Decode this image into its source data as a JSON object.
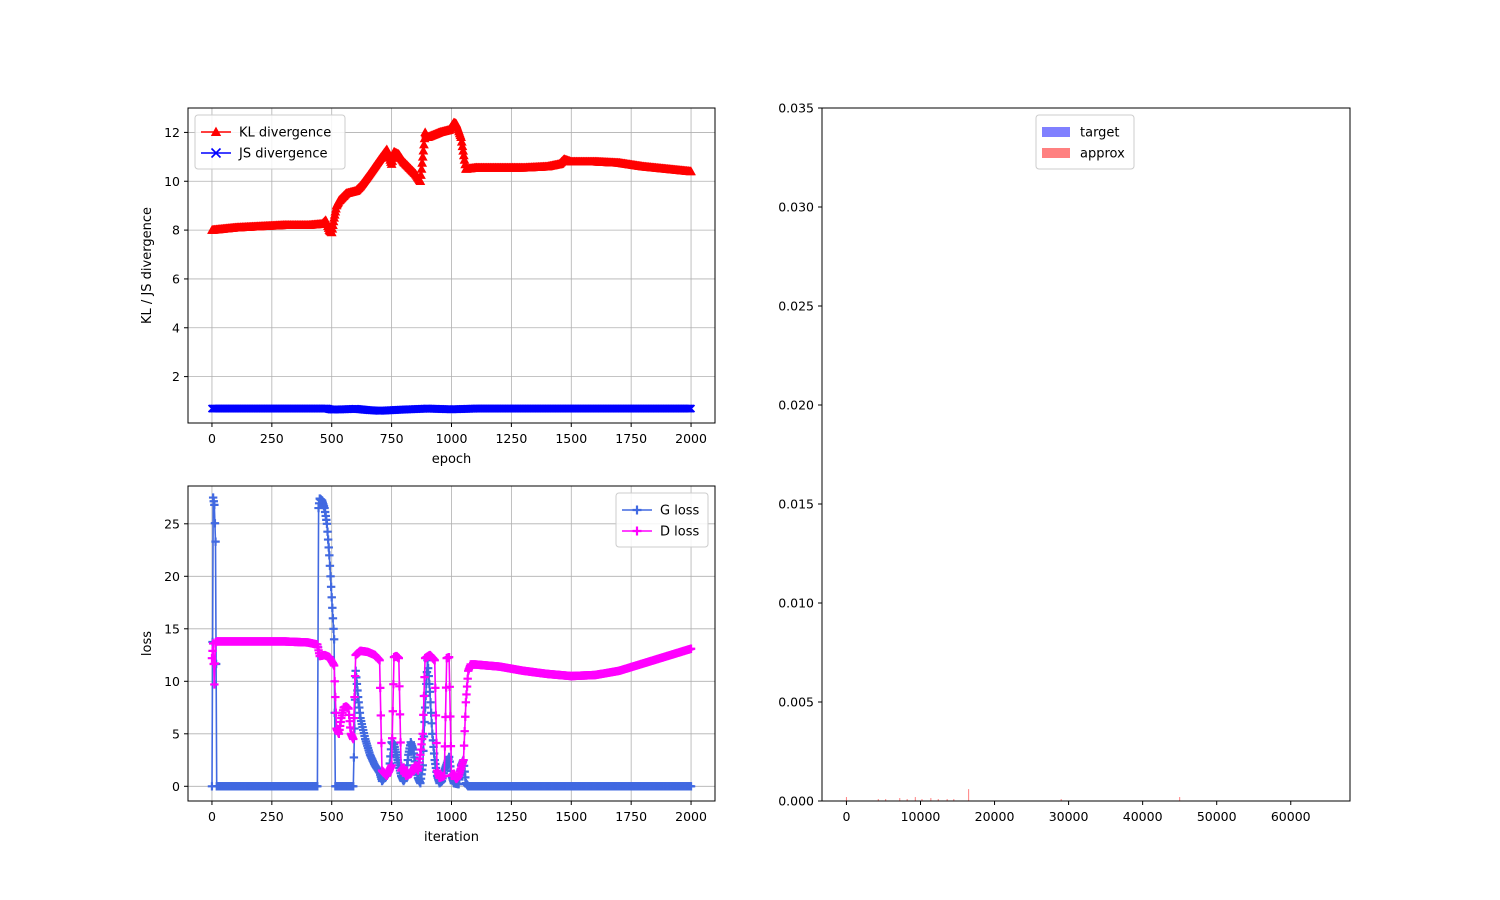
{
  "chart_data": [
    {
      "id": "divergence",
      "type": "line",
      "xlabel": "epoch",
      "ylabel": "KL / JS divergence",
      "xlim": [
        -100,
        2100
      ],
      "ylim": [
        0.1,
        13.0
      ],
      "xticks": [
        0,
        250,
        500,
        750,
        1000,
        1250,
        1500,
        1750,
        2000
      ],
      "yticks": [
        2,
        4,
        6,
        8,
        10,
        12
      ],
      "grid": true,
      "legend": "upper left",
      "series": [
        {
          "name": "KL divergence",
          "color": "#ff0000",
          "marker": "triangle",
          "x": [
            0,
            50,
            100,
            200,
            300,
            400,
            460,
            475,
            490,
            500,
            510,
            520,
            530,
            540,
            560,
            600,
            620,
            650,
            700,
            730,
            750,
            760,
            780,
            800,
            850,
            870,
            880,
            890,
            900,
            950,
            990,
            1010,
            1020,
            1040,
            1060,
            1100,
            1200,
            1300,
            1400,
            1450,
            1470,
            1500,
            1600,
            1700,
            1800,
            1900,
            2000
          ],
          "y": [
            8.0,
            8.05,
            8.1,
            8.15,
            8.2,
            8.2,
            8.25,
            8.4,
            8.0,
            7.9,
            8.5,
            9.0,
            9.2,
            9.3,
            9.5,
            9.6,
            9.8,
            10.2,
            10.9,
            11.3,
            10.7,
            11.2,
            11.1,
            10.8,
            10.3,
            10.0,
            11.0,
            12.0,
            11.8,
            12.0,
            12.1,
            12.4,
            12.35,
            11.8,
            10.5,
            10.55,
            10.55,
            10.55,
            10.6,
            10.7,
            10.9,
            10.8,
            10.8,
            10.75,
            10.6,
            10.5,
            10.4
          ]
        },
        {
          "name": "JS divergence",
          "color": "#0000ff",
          "marker": "x",
          "x": [
            0,
            100,
            200,
            300,
            400,
            480,
            500,
            550,
            600,
            650,
            700,
            800,
            900,
            1000,
            1100,
            1200,
            1400,
            1600,
            1800,
            2000
          ],
          "y": [
            0.69,
            0.69,
            0.69,
            0.69,
            0.69,
            0.69,
            0.65,
            0.66,
            0.68,
            0.63,
            0.6,
            0.65,
            0.69,
            0.66,
            0.69,
            0.69,
            0.69,
            0.69,
            0.69,
            0.69
          ]
        }
      ]
    },
    {
      "id": "loss",
      "type": "line",
      "xlabel": "iteration",
      "ylabel": "loss",
      "xlim": [
        -100,
        2100
      ],
      "ylim": [
        -1.4,
        28.6
      ],
      "xticks": [
        0,
        250,
        500,
        750,
        1000,
        1250,
        1500,
        1750,
        2000
      ],
      "yticks": [
        0,
        5,
        10,
        15,
        20,
        25
      ],
      "grid": true,
      "legend": "upper right",
      "series": [
        {
          "name": "G loss",
          "color": "#4169e1",
          "marker": "plus",
          "x": [
            0,
            5,
            10,
            15,
            20,
            100,
            200,
            300,
            400,
            440,
            445,
            450,
            460,
            470,
            480,
            490,
            500,
            510,
            515,
            520,
            560,
            590,
            600,
            610,
            620,
            640,
            660,
            680,
            700,
            710,
            740,
            750,
            760,
            770,
            780,
            790,
            800,
            810,
            820,
            830,
            840,
            850,
            860,
            870,
            880,
            890,
            900,
            910,
            920,
            930,
            940,
            950,
            960,
            970,
            990,
            1000,
            1010,
            1030,
            1040,
            1050,
            1060,
            1070,
            1200,
            1500,
            1800,
            2000
          ],
          "y": [
            0,
            27.5,
            26.8,
            23.3,
            0,
            0,
            0,
            0,
            0,
            0,
            26.5,
            27.4,
            27.2,
            26.5,
            25.0,
            22.0,
            18.0,
            14.0,
            0,
            0,
            0,
            0,
            11.0,
            8.5,
            6.5,
            4.5,
            3.0,
            2.0,
            1.3,
            0.5,
            1.5,
            4.2,
            4.0,
            3.0,
            2.0,
            1.0,
            0.5,
            1.0,
            3.0,
            4.2,
            3.5,
            2.0,
            0.8,
            0.3,
            2.0,
            7.5,
            12.0,
            9.0,
            5.0,
            2.5,
            1.0,
            0.3,
            0.5,
            1.5,
            2.8,
            1.0,
            0.3,
            0.2,
            2.0,
            2.5,
            0.3,
            0,
            0,
            0,
            0,
            0
          ]
        },
        {
          "name": "D loss",
          "color": "#ff00ff",
          "marker": "plus",
          "x": [
            0,
            5,
            10,
            15,
            20,
            50,
            100,
            200,
            300,
            400,
            440,
            450,
            470,
            490,
            510,
            520,
            530,
            540,
            550,
            560,
            570,
            580,
            590,
            600,
            620,
            650,
            680,
            700,
            710,
            730,
            740,
            750,
            760,
            770,
            780,
            790,
            800,
            810,
            830,
            850,
            860,
            870,
            880,
            890,
            910,
            930,
            940,
            950,
            970,
            980,
            990,
            1000,
            1010,
            1020,
            1030,
            1050,
            1060,
            1070,
            1080,
            1100,
            1200,
            1300,
            1400,
            1500,
            1600,
            1700,
            1800,
            1900,
            2000
          ],
          "y": [
            12.2,
            13.6,
            9.7,
            13.7,
            13.8,
            13.8,
            13.8,
            13.8,
            13.8,
            13.7,
            13.5,
            12.4,
            12.5,
            12.3,
            11.5,
            5.5,
            5.0,
            6.5,
            7.5,
            7.6,
            7.4,
            5.0,
            4.5,
            12.5,
            12.9,
            12.8,
            12.5,
            12.0,
            1.5,
            1.0,
            1.5,
            2.0,
            12.3,
            12.4,
            12.2,
            1.5,
            1.8,
            1.0,
            1.2,
            2.0,
            1.5,
            3.0,
            5.0,
            12.2,
            12.5,
            12.0,
            1.5,
            0.8,
            1.0,
            12.2,
            12.3,
            1.0,
            1.2,
            0.7,
            1.0,
            2.5,
            8.0,
            11.0,
            11.6,
            11.6,
            11.4,
            11.0,
            10.7,
            10.5,
            10.6,
            11.0,
            11.7,
            12.4,
            13.1
          ]
        }
      ]
    },
    {
      "id": "histogram",
      "type": "bar",
      "xlim": [
        -3300,
        68000
      ],
      "ylim": [
        0.0,
        0.035
      ],
      "xticks": [
        0,
        10000,
        20000,
        30000,
        40000,
        50000,
        60000
      ],
      "yticks": [
        0.0,
        0.005,
        0.01,
        0.015,
        0.02,
        0.025,
        0.03,
        0.035
      ],
      "ytick_labels": [
        "0.000",
        "0.005",
        "0.010",
        "0.015",
        "0.020",
        "0.025",
        "0.030",
        "0.035"
      ],
      "grid": false,
      "legend": "upper center",
      "series": [
        {
          "name": "target",
          "color": "#8080ff",
          "x": [],
          "values": []
        },
        {
          "name": "approx",
          "color": "#ff8080",
          "x": [
            0,
            4300,
            5300,
            7200,
            8200,
            9300,
            10200,
            11400,
            12400,
            13600,
            14500,
            16500,
            29000,
            45000
          ],
          "values": [
            0.0002,
            0.0001,
            0.0001,
            0.00015,
            0.0001,
            0.0002,
            0.0001,
            0.00015,
            0.0001,
            0.0001,
            0.0001,
            0.0006,
            0.0001,
            0.0002
          ]
        }
      ]
    }
  ]
}
